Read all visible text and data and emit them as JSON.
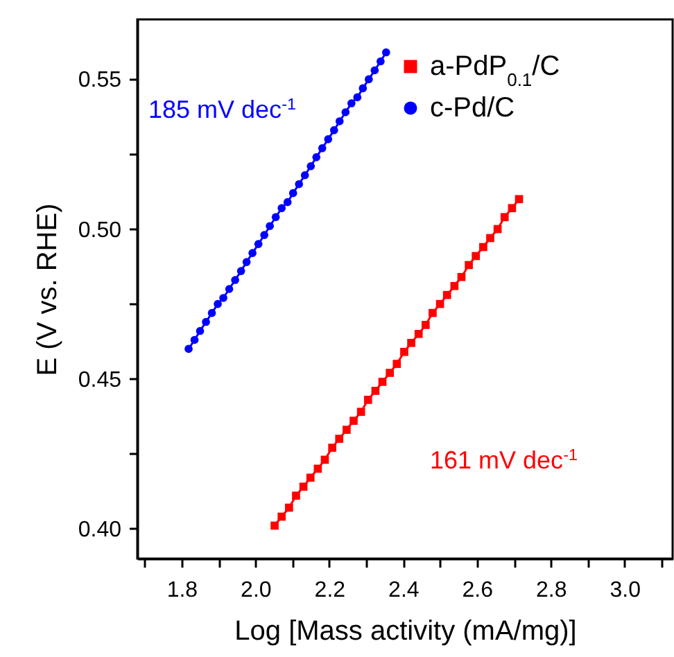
{
  "chart_data": {
    "type": "line",
    "xlabel": "Log [Mass activity (mA/mg)]",
    "ylabel": "E (V vs. RHE)",
    "xlim": [
      1.68,
      3.13
    ],
    "ylim": [
      0.39,
      0.57
    ],
    "xticks": [
      {
        "value": 1.7,
        "label": null
      },
      1.8,
      {
        "value": 1.9,
        "label": null
      },
      {
        "value": 2,
        "label": "2.0"
      },
      {
        "value": 2.1,
        "label": null
      },
      2.2,
      {
        "value": 2.3,
        "label": null
      },
      2.4,
      {
        "value": 2.5,
        "label": null
      },
      2.6,
      {
        "value": 2.7,
        "label": null
      },
      2.8,
      {
        "value": 2.9,
        "label": null
      },
      {
        "value": 3,
        "label": "3.0"
      },
      {
        "value": 3.1,
        "label": null
      }
    ],
    "yticks": [
      {
        "value": 0.4,
        "label": "0.40"
      },
      {
        "value": 0.425,
        "label": null
      },
      {
        "value": 0.45,
        "label": "0.45"
      },
      {
        "value": 0.475,
        "label": null
      },
      {
        "value": 0.5,
        "label": "0.50"
      },
      {
        "value": 0.525,
        "label": null
      },
      {
        "value": 0.55,
        "label": "0.55"
      }
    ],
    "grid": false,
    "legend": "top right",
    "line_style": "solid",
    "annotations": [
      "161 mV dec$^{-1}$",
      "185 mV dec$^{-1}$"
    ],
    "series": [
      {
        "name": "a-PdP$_{0.1}$/C",
        "color": "#ff0000",
        "marker": "square",
        "x": [
          2.052,
          2.071,
          2.091,
          2.11,
          2.13,
          2.149,
          2.169,
          2.188,
          2.208,
          2.227,
          2.247,
          2.266,
          2.286,
          2.305,
          2.325,
          2.344,
          2.364,
          2.383,
          2.403,
          2.422,
          2.442,
          2.461,
          2.48,
          2.5,
          2.519,
          2.539,
          2.558,
          2.578,
          2.597,
          2.617,
          2.636,
          2.656,
          2.675,
          2.695,
          2.714
        ],
        "values": [
          0.401,
          0.404,
          0.407,
          0.411,
          0.414,
          0.417,
          0.42,
          0.423,
          0.427,
          0.43,
          0.433,
          0.436,
          0.439,
          0.443,
          0.446,
          0.449,
          0.452,
          0.455,
          0.459,
          0.462,
          0.465,
          0.468,
          0.472,
          0.475,
          0.478,
          0.481,
          0.484,
          0.488,
          0.491,
          0.494,
          0.497,
          0.5,
          0.504,
          0.507,
          0.51
        ]
      },
      {
        "name": "c-Pd/C",
        "color": "#0000ff",
        "marker": "circle",
        "x": [
          1.819,
          1.835,
          1.85,
          1.866,
          1.882,
          1.898,
          1.913,
          1.929,
          1.945,
          1.961,
          1.976,
          1.992,
          2.008,
          2.024,
          2.039,
          2.055,
          2.071,
          2.087,
          2.102,
          2.118,
          2.134,
          2.15,
          2.165,
          2.181,
          2.197,
          2.213,
          2.228,
          2.244,
          2.26,
          2.276,
          2.291,
          2.307,
          2.323,
          2.339,
          2.354
        ],
        "values": [
          0.46,
          0.463,
          0.466,
          0.469,
          0.472,
          0.475,
          0.477,
          0.48,
          0.483,
          0.486,
          0.489,
          0.492,
          0.495,
          0.498,
          0.501,
          0.504,
          0.507,
          0.509,
          0.512,
          0.515,
          0.518,
          0.521,
          0.524,
          0.527,
          0.53,
          0.533,
          0.536,
          0.539,
          0.542,
          0.544,
          0.547,
          0.55,
          0.553,
          0.556,
          0.559
        ]
      }
    ]
  }
}
